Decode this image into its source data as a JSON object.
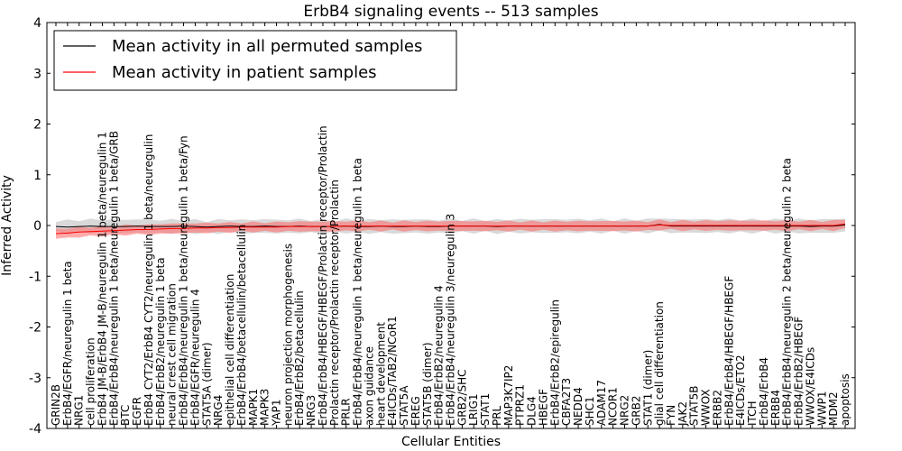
{
  "chart_data": {
    "type": "line",
    "title": "ErbB4 signaling events -- 513 samples",
    "xlabel": "Cellular Entities",
    "ylabel": "Inferred Activity",
    "ylim": [
      -4,
      4
    ],
    "yticks": [
      -4,
      -3,
      -2,
      -1,
      0,
      1,
      2,
      3,
      4
    ],
    "legend_position": "top-left",
    "categories": [
      "GRIN2B",
      "ErbB4/EGFR/neuregulin 1 beta",
      "NRG1",
      "cell proliferation",
      "ErbB4 JM-B/ErbB4 JM-B/neuregulin 1 beta/neuregulin 1",
      "ErbB4/ErbB4/neuregulin 1 beta/neuregulin 1 beta/GRB",
      "BTC",
      "EGFR",
      "ErbB4 CYT2/ErbB4 CYT2/neuregulin 1 beta/neuregulin",
      "ErbB4/ErbB2/neuregulin 1 beta",
      "neural crest cell migration",
      "ErbB4/ErbB4/neuregulin 1 beta/neuregulin 1 beta/Fyn",
      "ErbB4/EGFR/neuregulin 4",
      "STAT5A (dimer)",
      "NRG4",
      "epithelial cell differentiation",
      "ErbB4/ErbB4/betacellulin/betacellulin",
      "MAPK1",
      "MAPK3",
      "YAP1",
      "neuron projection morphogenesis",
      "ErbB4/ErbB2/betacellulin",
      "NRG3",
      "ErbB4/ErbB4/HBEGF/HBEGF/Prolactin receptor/Prolactin",
      "Prolactin receptor/Prolactin receptor/Prolactin",
      "PRLR",
      "ErbB4/ErbB4/neuregulin 1 beta/neuregulin 1 beta",
      "axon guidance",
      "heart development",
      "E4ICDs/TAB2/NCoR1",
      "STAT5A",
      "EREG",
      "STAT5B (dimer)",
      "ErbB4/ErbB2/neuregulin 4",
      "ErbB4/ErbB4/neuregulin 3/neuregulin 3",
      "GRB2/SHC",
      "LRIG1",
      "STAT1",
      "PRL",
      "MAP3K7IP2",
      "PTPRZ1",
      "DLG4",
      "HBEGF",
      "ErbB4/ErbB2/epiregulin",
      "CBFA2T3",
      "NEDD4",
      "SHC1",
      "ADAM17",
      "NCOR1",
      "NRG2",
      "GRB2",
      "STAT1 (dimer)",
      "glial cell differentiation",
      "FYN",
      "JAK2",
      "STAT5B",
      "WWOX",
      "ERBB2",
      "ErbB4/ErbB4/HBEGF/HBEGF",
      "E4ICDs/ETO2",
      "ITCH",
      "ErbB4/ErbB4",
      "ERBB4",
      "ErbB4/ErbB4/neuregulin 2 beta/neuregulin 2 beta",
      "ErbB4/ErbB2/HBEGF",
      "WWOX/E4ICDs",
      "WWP1",
      "MDM2",
      "apoptosis"
    ],
    "series": [
      {
        "name": "Mean activity in all permuted samples",
        "color": "#000000",
        "values": [
          -0.02,
          -0.03,
          -0.02,
          -0.01,
          -0.02,
          -0.02,
          -0.02,
          -0.01,
          -0.02,
          -0.02,
          -0.02,
          -0.01,
          -0.02,
          -0.03,
          -0.02,
          -0.01,
          -0.02,
          -0.02,
          -0.01,
          -0.02,
          -0.02,
          -0.01,
          -0.02,
          -0.02,
          -0.02,
          -0.01,
          -0.02,
          -0.02,
          -0.01,
          -0.02,
          -0.02,
          -0.01,
          -0.02,
          -0.02,
          -0.01,
          -0.01,
          -0.01,
          -0.01,
          -0.02,
          -0.01,
          -0.01,
          -0.01,
          -0.01,
          -0.01,
          -0.01,
          -0.01,
          -0.01,
          -0.01,
          -0.01,
          -0.01,
          -0.01,
          -0.01,
          0.02,
          -0.01,
          -0.01,
          -0.01,
          -0.01,
          -0.01,
          -0.01,
          -0.01,
          -0.01,
          -0.01,
          -0.01,
          -0.01,
          -0.01,
          -0.02,
          -0.01,
          -0.01,
          0.01
        ],
        "band": 0.15,
        "band_color": "#aaaaaa"
      },
      {
        "name": "Mean activity in patient samples",
        "color": "#ff0000",
        "values": [
          -0.16,
          -0.15,
          -0.13,
          -0.12,
          -0.11,
          -0.1,
          -0.09,
          -0.08,
          -0.08,
          -0.07,
          -0.06,
          -0.06,
          -0.05,
          -0.05,
          -0.04,
          -0.04,
          -0.03,
          -0.03,
          -0.03,
          -0.03,
          -0.02,
          -0.02,
          -0.02,
          -0.02,
          -0.02,
          -0.01,
          -0.01,
          -0.01,
          -0.01,
          -0.01,
          -0.01,
          -0.01,
          -0.01,
          -0.01,
          -0.01,
          -0.01,
          -0.01,
          -0.01,
          -0.01,
          -0.01,
          -0.01,
          -0.01,
          -0.01,
          -0.01,
          -0.01,
          -0.01,
          -0.01,
          -0.01,
          -0.01,
          -0.01,
          -0.01,
          -0.01,
          0.01,
          0.0,
          0.0,
          0.0,
          0.0,
          0.0,
          0.0,
          0.0,
          0.0,
          0.0,
          0.0,
          0.0,
          0.0,
          0.0,
          0.0,
          0.0,
          0.03
        ],
        "band": 0.11,
        "band_color": "#ff6666"
      }
    ]
  }
}
